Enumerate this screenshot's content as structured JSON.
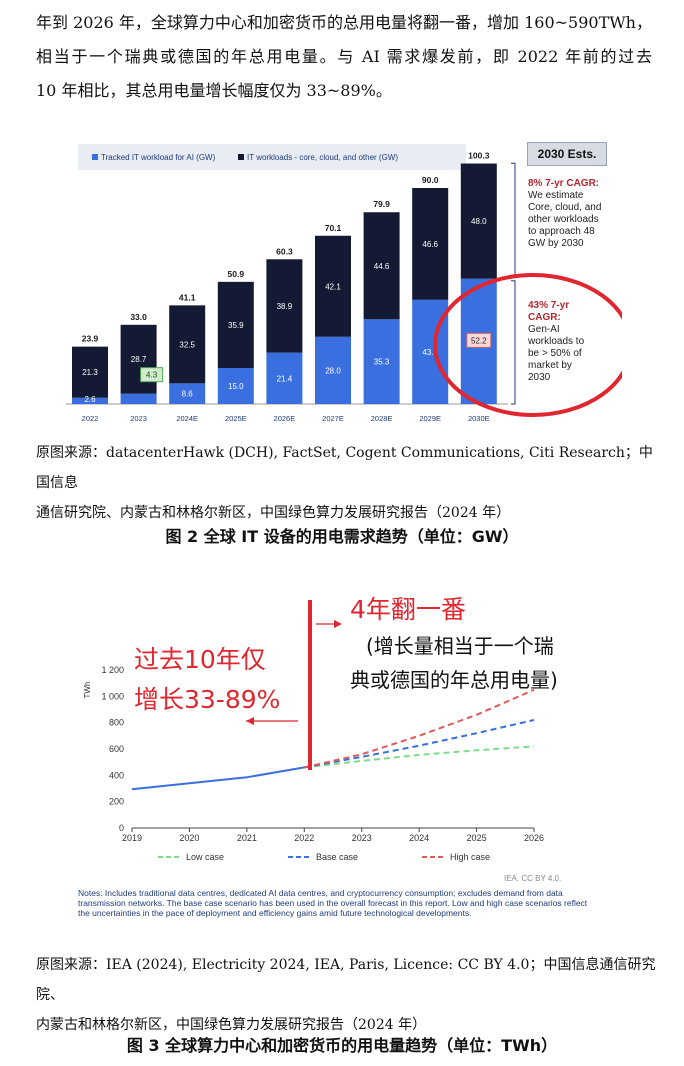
{
  "paragraph": {
    "line1": "年到 2026 年，全球算力中心和加密货币的总用电量将翻一番，增加 160~590TWh，",
    "line2": "相当于一个瑞典或德国的年总用电量。与 AI 需求爆发前，即 2022 年前的过去",
    "line3": "10 年相比，其总用电量增长幅度仅为 33~89%。"
  },
  "figure2": {
    "source_line1": "原图来源：datacenterHawk (DCH), FactSet, Cogent Communications, Citi Research；中国信息",
    "source_line2": "通信研究院、内蒙古和林格尔新区，中国绿色算力发展研究报告（2024 年）",
    "caption": "图 2  全球 IT 设备的用电需求趋势（单位：GW）",
    "legend_ai": "Tracked IT workload for AI (GW)",
    "legend_other": "IT workloads - core, cloud, and other (GW)",
    "estimates_label": "2030 Ests.",
    "note_top_title": "8% 7-yr CAGR:",
    "note_top_body": [
      "We estimate",
      "Core, cloud, and",
      "other workloads",
      "to approach 48",
      "GW by 2030"
    ],
    "note_bottom_title": [
      "43% 7-yr",
      "CAGR:"
    ],
    "note_bottom_body": [
      "Gen-AI",
      "workloads to",
      "be > 50% of",
      "market by",
      "2030"
    ],
    "colors": {
      "ai": "#3a6fe0",
      "other": "#141a33",
      "annotation": "#e0262f",
      "note_title": "#b0282e"
    }
  },
  "chart_data": [
    {
      "type": "bar",
      "stacked": true,
      "categories": [
        "2022",
        "2023",
        "2024E",
        "2025E",
        "2026E",
        "2027E",
        "2028E",
        "2029E",
        "2030E"
      ],
      "series": [
        {
          "name": "Tracked IT workload for AI (GW)",
          "values": [
            2.6,
            4.3,
            8.6,
            15.0,
            21.4,
            28.0,
            35.3,
            43.4,
            52.2
          ]
        },
        {
          "name": "IT workloads - core, cloud, and other (GW)",
          "values": [
            21.3,
            28.7,
            32.5,
            35.9,
            38.9,
            42.1,
            44.6,
            46.6,
            48.0
          ]
        }
      ],
      "totals": [
        23.9,
        33.0,
        41.1,
        50.9,
        60.3,
        70.1,
        79.9,
        90.0,
        100.3
      ],
      "ylim": [
        0,
        105
      ]
    },
    {
      "type": "line",
      "x": [
        2019,
        2020,
        2021,
        2022,
        2023,
        2024,
        2025,
        2026
      ],
      "ylabel": "TWh",
      "ylim": [
        0,
        1200
      ],
      "yticks": [
        "0",
        "200",
        "400",
        "600",
        "800",
        "1 000",
        "1 200"
      ],
      "grid": false,
      "historical": {
        "x": [
          2019,
          2020,
          2021,
          2022
        ],
        "y": [
          295,
          340,
          385,
          460
        ]
      },
      "series": [
        {
          "name": "Low case",
          "x": [
            2022,
            2023,
            2024,
            2025,
            2026
          ],
          "y": [
            460,
            510,
            555,
            590,
            620
          ],
          "color": "#7fdc8a"
        },
        {
          "name": "Base case",
          "x": [
            2022,
            2023,
            2024,
            2025,
            2026
          ],
          "y": [
            460,
            540,
            625,
            720,
            820
          ],
          "color": "#3a6fe0"
        },
        {
          "name": "High case",
          "x": [
            2022,
            2023,
            2024,
            2025,
            2026
          ],
          "y": [
            460,
            560,
            700,
            860,
            1050
          ],
          "color": "#e05a5a"
        }
      ]
    }
  ],
  "figure3": {
    "anno_left_line1": "过去10年仅",
    "anno_left_line2": "增长33-89%",
    "anno_right_title": "4年翻一番",
    "anno_right_line1": "(增长量相当于一个瑞",
    "anno_right_line2": "典或德国的年总用电量)",
    "credit": "IEA. CC BY 4.0.",
    "notes": "Notes: Includes traditional data centres, dedicated AI data centres, and cryptocurrency consumption; excludes demand from data transmission networks. The base case scenario has been used in the overall forecast in this report. Low and high case scenarios reflect the uncertainties in the pace of deployment and efficiency gains amid future technological developments.",
    "source_line1": "原图来源：IEA (2024), Electricity 2024, IEA, Paris, Licence: CC BY 4.0；中国信息通信研究院、",
    "source_line2": "内蒙古和林格尔新区，中国绿色算力发展研究报告（2024 年）",
    "caption": "图 3  全球算力中心和加密货币的用电量趋势（单位：TWh）"
  }
}
